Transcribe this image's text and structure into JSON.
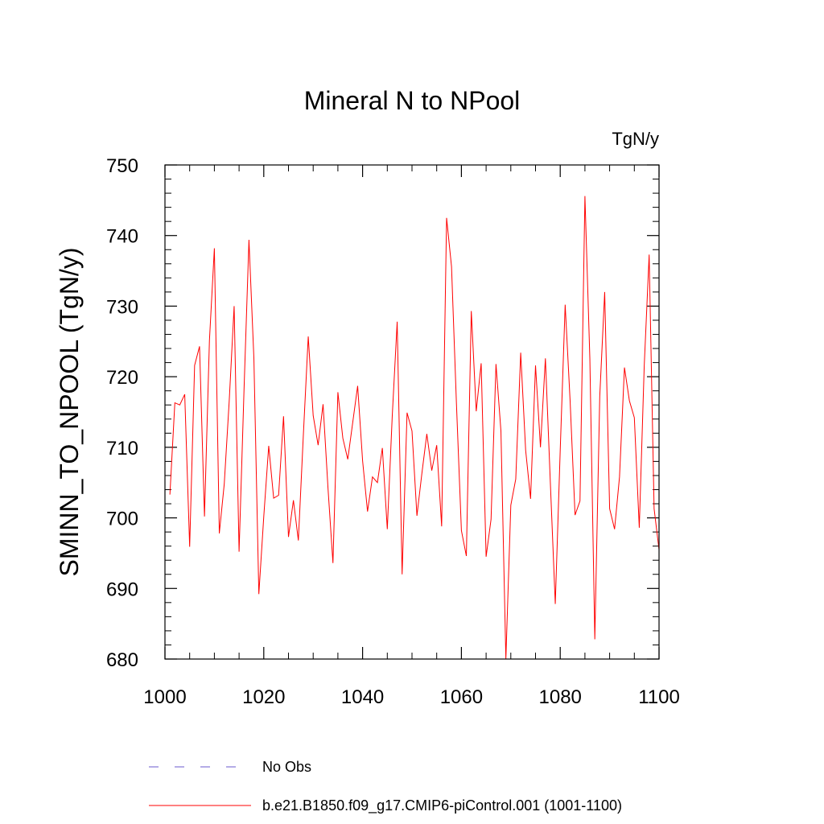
{
  "chart_data": {
    "type": "line",
    "title": "Mineral N to NPool",
    "units_label": "TgN/y",
    "ylabel": "SMINN_TO_NPOOL  (TgN/y)",
    "xlabel": "",
    "xlim": [
      1000,
      1100
    ],
    "ylim": [
      680,
      750
    ],
    "x_ticks": [
      1000,
      1020,
      1040,
      1060,
      1080,
      1100
    ],
    "y_ticks": [
      680,
      690,
      700,
      710,
      720,
      730,
      740,
      750
    ],
    "x_minor_step": 5,
    "y_minor_step": 2,
    "grid": false,
    "legend_position": "bottom",
    "series": [
      {
        "name": "b.e21.B1850.f09_g17.CMIP6-piControl.001 (1001-1100)",
        "color": "#ff0000",
        "style": "solid",
        "x": [
          1001,
          1002,
          1003,
          1004,
          1005,
          1006,
          1007,
          1008,
          1009,
          1010,
          1011,
          1012,
          1013,
          1014,
          1015,
          1016,
          1017,
          1018,
          1019,
          1020,
          1021,
          1022,
          1023,
          1024,
          1025,
          1026,
          1027,
          1028,
          1029,
          1030,
          1031,
          1032,
          1033,
          1034,
          1035,
          1036,
          1037,
          1038,
          1039,
          1040,
          1041,
          1042,
          1043,
          1044,
          1045,
          1046,
          1047,
          1048,
          1049,
          1050,
          1051,
          1052,
          1053,
          1054,
          1055,
          1056,
          1057,
          1058,
          1059,
          1060,
          1061,
          1062,
          1063,
          1064,
          1065,
          1066,
          1067,
          1068,
          1069,
          1070,
          1071,
          1072,
          1073,
          1074,
          1075,
          1076,
          1077,
          1078,
          1079,
          1080,
          1081,
          1082,
          1083,
          1084,
          1085,
          1086,
          1087,
          1088,
          1089,
          1090,
          1091,
          1092,
          1093,
          1094,
          1095,
          1096,
          1097,
          1098,
          1099,
          1100
        ],
        "values": [
          703.3,
          716.3,
          716.0,
          717.5,
          695.9,
          721.6,
          724.3,
          700.2,
          725.1,
          738.2,
          697.8,
          704.8,
          716.5,
          730.0,
          695.2,
          718.1,
          739.4,
          722.6,
          689.2,
          700.2,
          710.2,
          702.8,
          703.2,
          714.4,
          697.3,
          702.5,
          696.8,
          711.6,
          725.7,
          714.5,
          710.3,
          716.1,
          704.2,
          693.6,
          717.8,
          711.3,
          708.3,
          713.5,
          718.7,
          708.1,
          700.9,
          705.8,
          705.0,
          709.9,
          698.4,
          714.4,
          727.8,
          692.0,
          714.9,
          712.3,
          700.3,
          706.3,
          711.9,
          706.7,
          710.3,
          698.8,
          742.5,
          735.6,
          716.1,
          698.2,
          694.6,
          729.3,
          715.1,
          721.9,
          694.5,
          699.8,
          721.8,
          712.3,
          680.0,
          701.8,
          705.5,
          723.4,
          709.6,
          702.7,
          721.6,
          710.0,
          722.6,
          705.0,
          687.8,
          709.6,
          730.2,
          716.6,
          700.4,
          702.4,
          745.6,
          722.5,
          682.8,
          717.2,
          732.0,
          701.3,
          698.4,
          705.8,
          721.3,
          716.6,
          714.2,
          698.6,
          721.5,
          737.3,
          701.3,
          695.5
        ]
      },
      {
        "name": "No Obs",
        "color": "#6a5acd",
        "style": "dashed",
        "x": [],
        "values": []
      }
    ]
  }
}
